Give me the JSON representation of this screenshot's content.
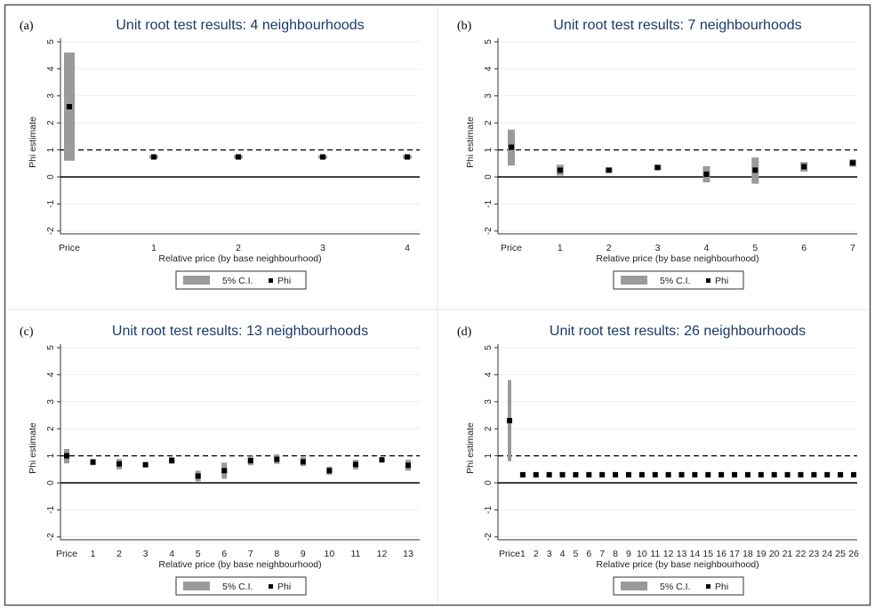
{
  "colors": {
    "title": "#1a3a6b",
    "ci": "#9a9a9a",
    "point": "#000000"
  },
  "chart_data": [
    {
      "label": "(a)",
      "type": "scatter",
      "title": "Unit root test results: 4 neighbourhoods",
      "xlabel": "Relative price (by base neighbourhood)",
      "ylabel": "Phi estimate",
      "ylim": [
        -2,
        5
      ],
      "yticks": [
        "5",
        "4",
        "3",
        "2",
        "1",
        "0",
        "-1",
        "-2"
      ],
      "reference_lines": [
        1,
        0
      ],
      "categories": [
        "Price",
        "1",
        "2",
        "3",
        "4"
      ],
      "series": [
        {
          "name": "Phi",
          "values": [
            2.6,
            0.74,
            0.74,
            0.74,
            0.74
          ]
        },
        {
          "name": "5% C.I.",
          "lower": [
            0.6,
            0.72,
            0.72,
            0.72,
            0.72
          ],
          "upper": [
            4.6,
            0.76,
            0.76,
            0.76,
            0.76
          ]
        }
      ],
      "legend": [
        "5% C.I.",
        "Phi"
      ]
    },
    {
      "label": "(b)",
      "type": "scatter",
      "title": "Unit root test results: 7 neighbourhoods",
      "xlabel": "Relative price (by base neighbourhood)",
      "ylabel": "Phi estimate",
      "ylim": [
        -2,
        5
      ],
      "yticks": [
        "5",
        "4",
        "3",
        "2",
        "1",
        "0",
        "-1",
        "-2"
      ],
      "reference_lines": [
        1,
        0
      ],
      "categories": [
        "Price",
        "1",
        "2",
        "3",
        "4",
        "5",
        "6",
        "7"
      ],
      "series": [
        {
          "name": "Phi",
          "values": [
            1.1,
            0.25,
            0.25,
            0.35,
            0.1,
            0.25,
            0.38,
            0.52
          ]
        },
        {
          "name": "5% C.I.",
          "lower": [
            0.42,
            0.05,
            0.15,
            0.25,
            -0.2,
            -0.25,
            0.2,
            0.38
          ],
          "upper": [
            1.75,
            0.45,
            0.35,
            0.45,
            0.4,
            0.72,
            0.55,
            0.65
          ]
        }
      ],
      "legend": [
        "5% C.I.",
        "Phi"
      ]
    },
    {
      "label": "(c)",
      "type": "scatter",
      "title": "Unit root test results: 13 neighbourhoods",
      "xlabel": "Relative price (by base neighbourhood)",
      "ylabel": "Phi estimate",
      "ylim": [
        -2,
        5
      ],
      "yticks": [
        "5",
        "4",
        "3",
        "2",
        "1",
        "0",
        "-1",
        "-2"
      ],
      "reference_lines": [
        1,
        0
      ],
      "categories": [
        "Price",
        "1",
        "2",
        "3",
        "4",
        "5",
        "6",
        "7",
        "8",
        "9",
        "10",
        "11",
        "12",
        "13"
      ],
      "series": [
        {
          "name": "Phi",
          "values": [
            1.0,
            0.77,
            0.7,
            0.67,
            0.83,
            0.25,
            0.45,
            0.82,
            0.87,
            0.78,
            0.45,
            0.68,
            0.85,
            0.65
          ]
        },
        {
          "name": "5% C.I.",
          "lower": [
            0.72,
            0.65,
            0.5,
            0.6,
            0.7,
            0.05,
            0.15,
            0.65,
            0.7,
            0.62,
            0.3,
            0.5,
            0.8,
            0.45
          ],
          "upper": [
            1.25,
            0.88,
            0.88,
            0.75,
            0.95,
            0.45,
            0.75,
            1.0,
            1.05,
            0.95,
            0.6,
            0.85,
            0.9,
            0.85
          ]
        }
      ],
      "legend": [
        "5% C.I.",
        "Phi"
      ]
    },
    {
      "label": "(d)",
      "type": "scatter",
      "title": "Unit root test results: 26 neighbourhoods",
      "xlabel": "Relative price (by base neighbourhood)",
      "ylabel": "Phi estimate",
      "ylim": [
        -2,
        5
      ],
      "yticks": [
        "5",
        "4",
        "3",
        "2",
        "1",
        "0",
        "-1",
        "-2"
      ],
      "reference_lines": [
        1,
        0
      ],
      "categories": [
        "Price",
        "1",
        "2",
        "3",
        "4",
        "5",
        "6",
        "7",
        "8",
        "9",
        "10",
        "11",
        "12",
        "13",
        "14",
        "15",
        "16",
        "17",
        "18",
        "19",
        "20",
        "21",
        "22",
        "23",
        "24",
        "25",
        "26"
      ],
      "series": [
        {
          "name": "Phi",
          "values": [
            2.3,
            0.3,
            0.3,
            0.3,
            0.3,
            0.3,
            0.3,
            0.3,
            0.3,
            0.3,
            0.3,
            0.3,
            0.3,
            0.3,
            0.3,
            0.3,
            0.3,
            0.3,
            0.3,
            0.3,
            0.3,
            0.3,
            0.3,
            0.3,
            0.3,
            0.3,
            0.3
          ]
        },
        {
          "name": "5% C.I.",
          "lower": [
            0.8,
            0.3,
            0.3,
            0.3,
            0.3,
            0.3,
            0.3,
            0.3,
            0.3,
            0.3,
            0.3,
            0.3,
            0.3,
            0.3,
            0.3,
            0.3,
            0.3,
            0.3,
            0.3,
            0.3,
            0.3,
            0.3,
            0.3,
            0.3,
            0.3,
            0.3,
            0.3
          ],
          "upper": [
            3.8,
            0.3,
            0.3,
            0.3,
            0.3,
            0.3,
            0.3,
            0.3,
            0.3,
            0.3,
            0.3,
            0.3,
            0.3,
            0.3,
            0.3,
            0.3,
            0.3,
            0.3,
            0.3,
            0.3,
            0.3,
            0.3,
            0.3,
            0.3,
            0.3,
            0.3,
            0.3
          ]
        }
      ],
      "legend": [
        "5% C.I.",
        "Phi"
      ]
    }
  ]
}
